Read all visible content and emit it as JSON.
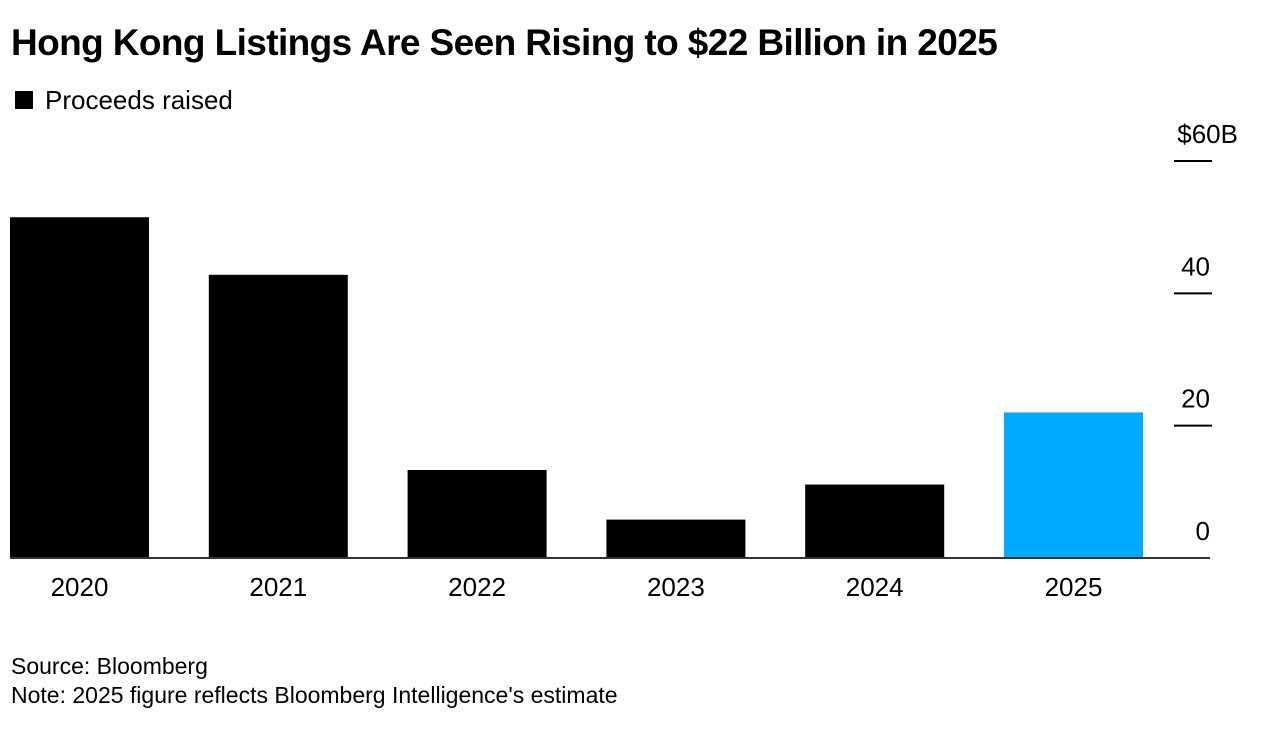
{
  "chart_data": {
    "type": "bar",
    "title": "Hong Kong Listings Are Seen Rising to $22 Billion in 2025",
    "legend": [
      {
        "name": "Proceeds raised",
        "color": "#000000"
      }
    ],
    "categories": [
      "2020",
      "2021",
      "2022",
      "2023",
      "2024",
      "2025"
    ],
    "series": [
      {
        "name": "Proceeds raised",
        "values": [
          51.5,
          42.8,
          13.3,
          5.8,
          11.1,
          22.0
        ],
        "colors": [
          "#000000",
          "#000000",
          "#000000",
          "#000000",
          "#000000",
          "#00aaff"
        ]
      }
    ],
    "ylim": [
      0,
      60
    ],
    "yticks": [
      {
        "value": 0,
        "label": "0"
      },
      {
        "value": 20,
        "label": "20"
      },
      {
        "value": 40,
        "label": "40"
      },
      {
        "value": 60,
        "label": "$60B"
      }
    ],
    "xlabel": "",
    "ylabel": "",
    "y_axis_side": "right",
    "grid": false
  },
  "footer": {
    "source": "Source: Bloomberg",
    "note": "Note: 2025 figure reflects Bloomberg Intelligence's estimate"
  }
}
